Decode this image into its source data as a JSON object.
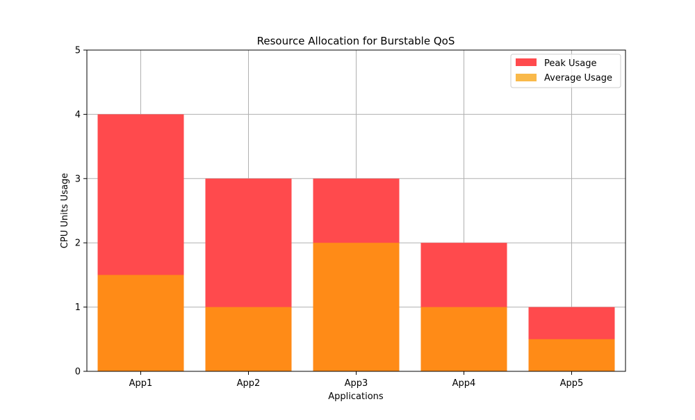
{
  "chart_data": {
    "type": "bar",
    "title": "Resource Allocation for Burstable QoS",
    "xlabel": "Applications",
    "ylabel": "CPU Units Usage",
    "categories": [
      "App1",
      "App2",
      "App3",
      "App4",
      "App5"
    ],
    "ylim": [
      0,
      5
    ],
    "yticks": [
      0,
      1,
      2,
      3,
      4,
      5
    ],
    "grid": true,
    "legend_position": "top-right",
    "overlay": true,
    "series": [
      {
        "name": "Peak Usage",
        "values": [
          4,
          3,
          3,
          2,
          1
        ],
        "color": "#ff4a4d"
      },
      {
        "name": "Average Usage",
        "values": [
          1.5,
          1,
          2,
          1,
          0.5
        ],
        "color": "#ff8b17",
        "legend_color": "#f9b94a"
      }
    ]
  }
}
